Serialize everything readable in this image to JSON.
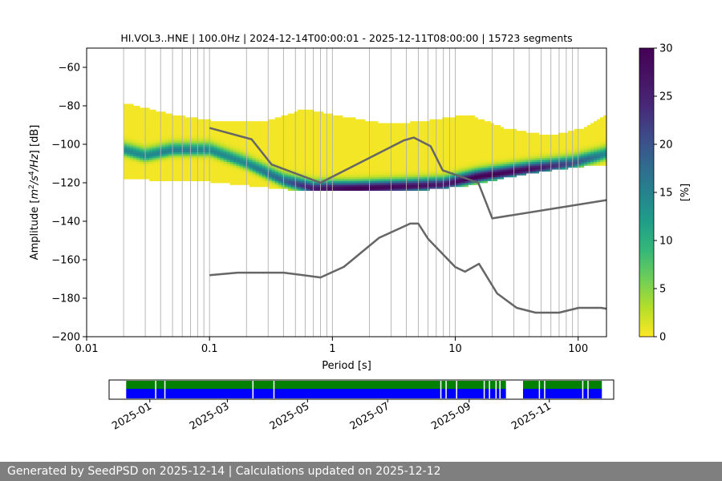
{
  "chart_data": [
    {
      "type": "heatmap",
      "title": "HI.VOL3..HNE | 100.0Hz | 2024-12-14T00:00:01 - 2025-12-11T08:00:00 | 15723 segments",
      "xlabel": "Period [s]",
      "ylabel_parts": [
        "Amplitude [",
        "m",
        "2",
        "/",
        "s",
        "4",
        "/",
        "Hz",
        "] [dB]"
      ],
      "x_scale": "log",
      "xlim": [
        0.01,
        170
      ],
      "ylim": [
        -200,
        -50
      ],
      "x_ticks": [
        {
          "value": 0.01,
          "label": "0.01"
        },
        {
          "value": 0.1,
          "label": "0.1"
        },
        {
          "value": 1,
          "label": "1"
        },
        {
          "value": 10,
          "label": "10"
        },
        {
          "value": 100,
          "label": "100"
        }
      ],
      "y_ticks": [
        -60,
        -80,
        -100,
        -120,
        -140,
        -160,
        -180,
        -200
      ],
      "y_tick_labels": [
        "−60",
        "−80",
        "−100",
        "−120",
        "−140",
        "−160",
        "−180",
        "−200"
      ],
      "grid": "vertical period lines",
      "colormap": "viridis_r",
      "colorbar": {
        "label": "[%]",
        "min": 0,
        "max": 30,
        "ticks": [
          0,
          5,
          10,
          15,
          20,
          25,
          30
        ]
      },
      "period_range": [
        0.02,
        170
      ],
      "pdf_mode": [
        {
          "period": 0.02,
          "amplitude": -103,
          "percent": 14
        },
        {
          "period": 0.03,
          "amplitude": -106,
          "percent": 14
        },
        {
          "period": 0.05,
          "amplitude": -103,
          "percent": 15
        },
        {
          "period": 0.1,
          "amplitude": -103,
          "percent": 14
        },
        {
          "period": 0.2,
          "amplitude": -110,
          "percent": 14
        },
        {
          "period": 0.4,
          "amplitude": -119,
          "percent": 18
        },
        {
          "period": 0.7,
          "amplitude": -123,
          "percent": 26
        },
        {
          "period": 1.5,
          "amplitude": -123,
          "percent": 30
        },
        {
          "period": 4,
          "amplitude": -122,
          "percent": 28
        },
        {
          "period": 8,
          "amplitude": -121,
          "percent": 26
        },
        {
          "period": 15,
          "amplitude": -117,
          "percent": 30
        },
        {
          "period": 40,
          "amplitude": -113,
          "percent": 28
        },
        {
          "period": 90,
          "amplitude": -110,
          "percent": 20
        },
        {
          "period": 170,
          "amplitude": -105,
          "percent": 14
        }
      ],
      "pdf_spread": [
        {
          "period": 0.02,
          "upper": -79,
          "lower": -117
        },
        {
          "period": 0.05,
          "upper": -85,
          "lower": -119
        },
        {
          "period": 0.1,
          "upper": -88,
          "lower": -119
        },
        {
          "period": 0.3,
          "upper": -88,
          "lower": -122
        },
        {
          "period": 0.6,
          "upper": -82,
          "lower": -124
        },
        {
          "period": 1.2,
          "upper": -86,
          "lower": -124
        },
        {
          "period": 3,
          "upper": -90,
          "lower": -124
        },
        {
          "period": 6,
          "upper": -88,
          "lower": -123
        },
        {
          "period": 13,
          "upper": -85,
          "lower": -121
        },
        {
          "period": 25,
          "upper": -92,
          "lower": -117
        },
        {
          "period": 60,
          "upper": -96,
          "lower": -113
        },
        {
          "period": 110,
          "upper": -92,
          "lower": -111
        },
        {
          "period": 170,
          "upper": -85,
          "lower": -110
        }
      ],
      "series": [
        {
          "name": "",
          "x": [
            0.1,
            0.22,
            0.32,
            0.8,
            3.8,
            4.6,
            6.3,
            7.9,
            15.4,
            20,
            170
          ],
          "values": [
            -91.5,
            -97.4,
            -110.5,
            -120.0,
            -98.0,
            -96.5,
            -101.0,
            -113.5,
            -120.0,
            -138.5,
            -129.0
          ]
        },
        {
          "name": "",
          "x": [
            0.1,
            0.17,
            0.4,
            0.8,
            1.24,
            2.4,
            4.3,
            5.0,
            6.0,
            10.0,
            12.0,
            15.6,
            21.9,
            31.6,
            45.0,
            70.0,
            101.0,
            154.0,
            170.0
          ],
          "values": [
            -168.0,
            -166.7,
            -166.7,
            -169.2,
            -163.7,
            -148.6,
            -141.2,
            -141.2,
            -149.1,
            -163.8,
            -166.2,
            -162.1,
            -177.5,
            -185.0,
            -187.5,
            -187.5,
            -185.0,
            -185.0,
            -185.5
          ]
        }
      ]
    },
    {
      "type": "timeline",
      "range": [
        "2024-12-01",
        "2025-12-20"
      ],
      "x_tick_labels": [
        "2025-01",
        "2025-03",
        "2025-05",
        "2025-07",
        "2025-09",
        "2025-11"
      ],
      "x_tick_dates": [
        "2025-01-01",
        "2025-03-01",
        "2025-05-01",
        "2025-07-01",
        "2025-09-01",
        "2025-11-01"
      ],
      "colors": {
        "available": "#008000",
        "used": "#0000ff"
      },
      "available": [
        [
          "2024-12-14",
          "2025-09-29"
        ],
        [
          "2025-10-12",
          "2025-12-11"
        ]
      ],
      "used": [
        [
          "2024-12-14",
          "2025-09-29"
        ],
        [
          "2025-10-12",
          "2025-12-11"
        ]
      ],
      "gaps": [
        "2025-01-05",
        "2025-01-12",
        "2025-03-20",
        "2025-04-05",
        "2025-08-10",
        "2025-08-14",
        "2025-08-22",
        "2025-09-12",
        "2025-09-16",
        "2025-09-21",
        "2025-09-24",
        "2025-10-24",
        "2025-10-28",
        "2025-11-26",
        "2025-11-30"
      ]
    }
  ],
  "footer": {
    "text": "Generated by SeedPSD on 2025-12-14 | Calculations updated on 2025-12-12"
  },
  "colors": {
    "noise_model_line": "#666666",
    "grid": "#b0b0b0",
    "footer_bg": "#7f7f7f"
  }
}
